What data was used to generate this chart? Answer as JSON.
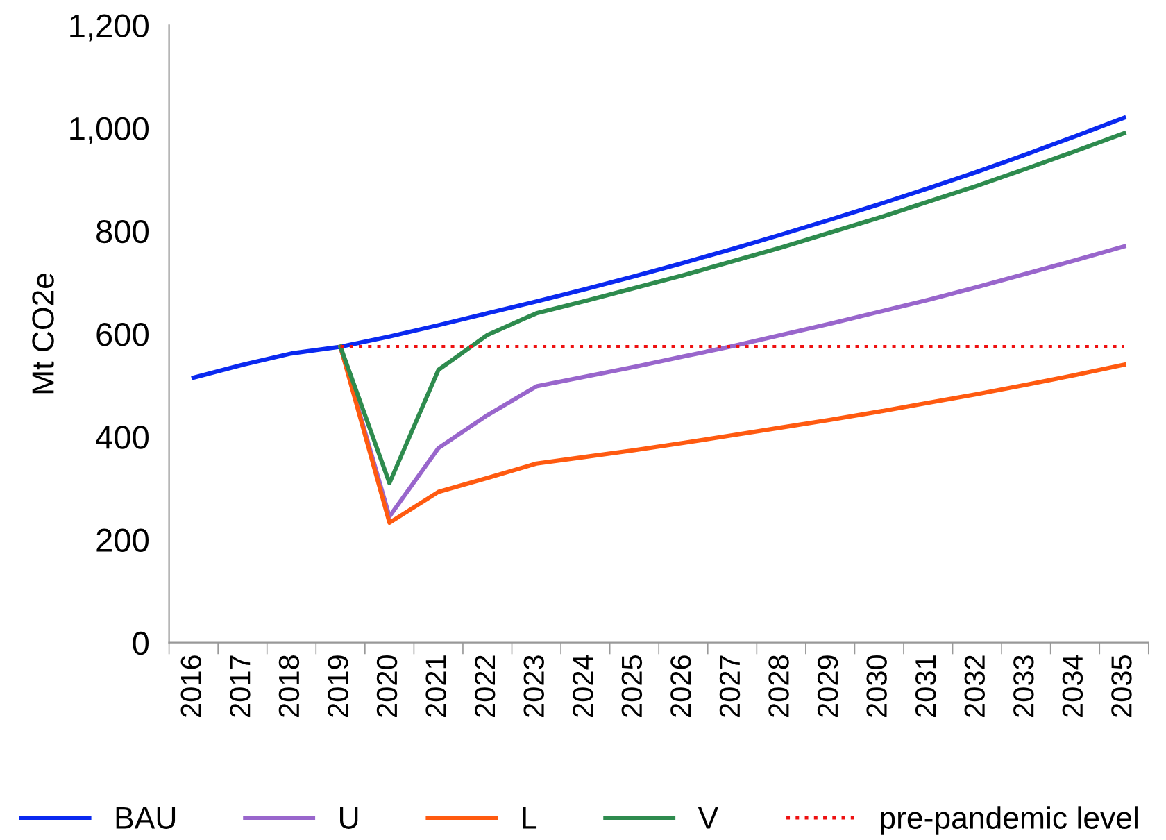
{
  "chart_data": {
    "type": "line",
    "ylabel": "Mt CO2e",
    "categories": [
      "2016",
      "2017",
      "2018",
      "2019",
      "2020",
      "2021",
      "2022",
      "2023",
      "2024",
      "2025",
      "2026",
      "2027",
      "2028",
      "2029",
      "2030",
      "2031",
      "2032",
      "2033",
      "2034",
      "2035"
    ],
    "ylim": [
      0,
      1200
    ],
    "yticks": [
      0,
      200,
      400,
      600,
      800,
      {
        "value": 1000,
        "label": "1,000"
      },
      {
        "value": 1200,
        "label": "1,200"
      }
    ],
    "grid": false,
    "legend": "bottom",
    "marker": "none",
    "series": [
      {
        "name": "BAU",
        "color": "#0a29f0",
        "values": [
          515,
          540,
          562,
          575,
          595,
          617,
          640,
          663,
          687,
          712,
          738,
          765,
          793,
          822,
          852,
          883,
          915,
          949,
          984,
          1020
        ]
      },
      {
        "name": "U",
        "color": "#9966cc",
        "values": [
          null,
          null,
          null,
          575,
          245,
          378,
          442,
          498,
          517,
          536,
          556,
          576,
          598,
          620,
          643,
          666,
          691,
          717,
          743,
          770
        ]
      },
      {
        "name": "L",
        "color": "#ff5a10",
        "values": [
          null,
          null,
          null,
          575,
          233,
          293,
          320,
          348,
          361,
          374,
          388,
          403,
          418,
          433,
          449,
          466,
          483,
          501,
          520,
          540
        ]
      },
      {
        "name": "V",
        "color": "#2e8b4e",
        "values": [
          null,
          null,
          null,
          575,
          310,
          530,
          598,
          640,
          664,
          689,
          714,
          741,
          768,
          797,
          826,
          857,
          888,
          921,
          955,
          990
        ]
      },
      {
        "name": "pre-pandemic level",
        "color": "#ee1111",
        "line_style": "dotted",
        "values": [
          null,
          null,
          null,
          575,
          575,
          575,
          575,
          575,
          575,
          575,
          575,
          575,
          575,
          575,
          575,
          575,
          575,
          575,
          575,
          575
        ]
      }
    ]
  }
}
